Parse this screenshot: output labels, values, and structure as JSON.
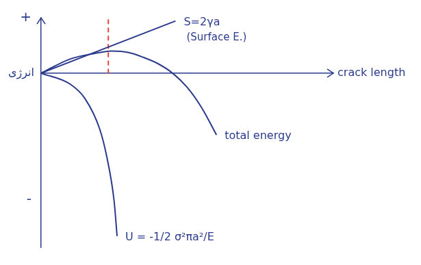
{
  "chart_data": {
    "type": "line",
    "x_label": "crack length",
    "y_label": "انرژی",
    "xlim": [
      0,
      10
    ],
    "ylim": [
      -11,
      3.5
    ],
    "yticks": [
      {
        "value": 3.5,
        "label": "+"
      },
      {
        "value": -8,
        "label": "-"
      }
    ],
    "tick_labels": "y",
    "grid": false,
    "series": [
      {
        "name": "S=2γa",
        "note": "(Surface E.)",
        "color": "#2b3a8c",
        "x": [
          0,
          4.6
        ],
        "values": [
          0,
          3.3
        ]
      },
      {
        "name": "total energy",
        "color": "#2b3a8c",
        "x": [
          0,
          1,
          2,
          2.4,
          3,
          3.5,
          4,
          4.5,
          5,
          5.5,
          6
        ],
        "values": [
          0,
          0.9,
          1.3,
          1.4,
          1.3,
          1.0,
          0.6,
          0,
          -0.9,
          -2.2,
          -3.9
        ]
      },
      {
        "name": "U = -1/2 σ²πa²/E",
        "color": "#2b3a8c",
        "x": [
          0,
          1,
          1.5,
          2,
          2.25,
          2.5,
          2.6
        ],
        "values": [
          0,
          -0.7,
          -1.6,
          -3.5,
          -5.3,
          -8.1,
          -10.3
        ]
      },
      {
        "color": "#e8423a",
        "line_style": "dashed",
        "x": [
          2.3,
          2.3
        ],
        "values": [
          3.4,
          -0.2
        ]
      }
    ]
  }
}
